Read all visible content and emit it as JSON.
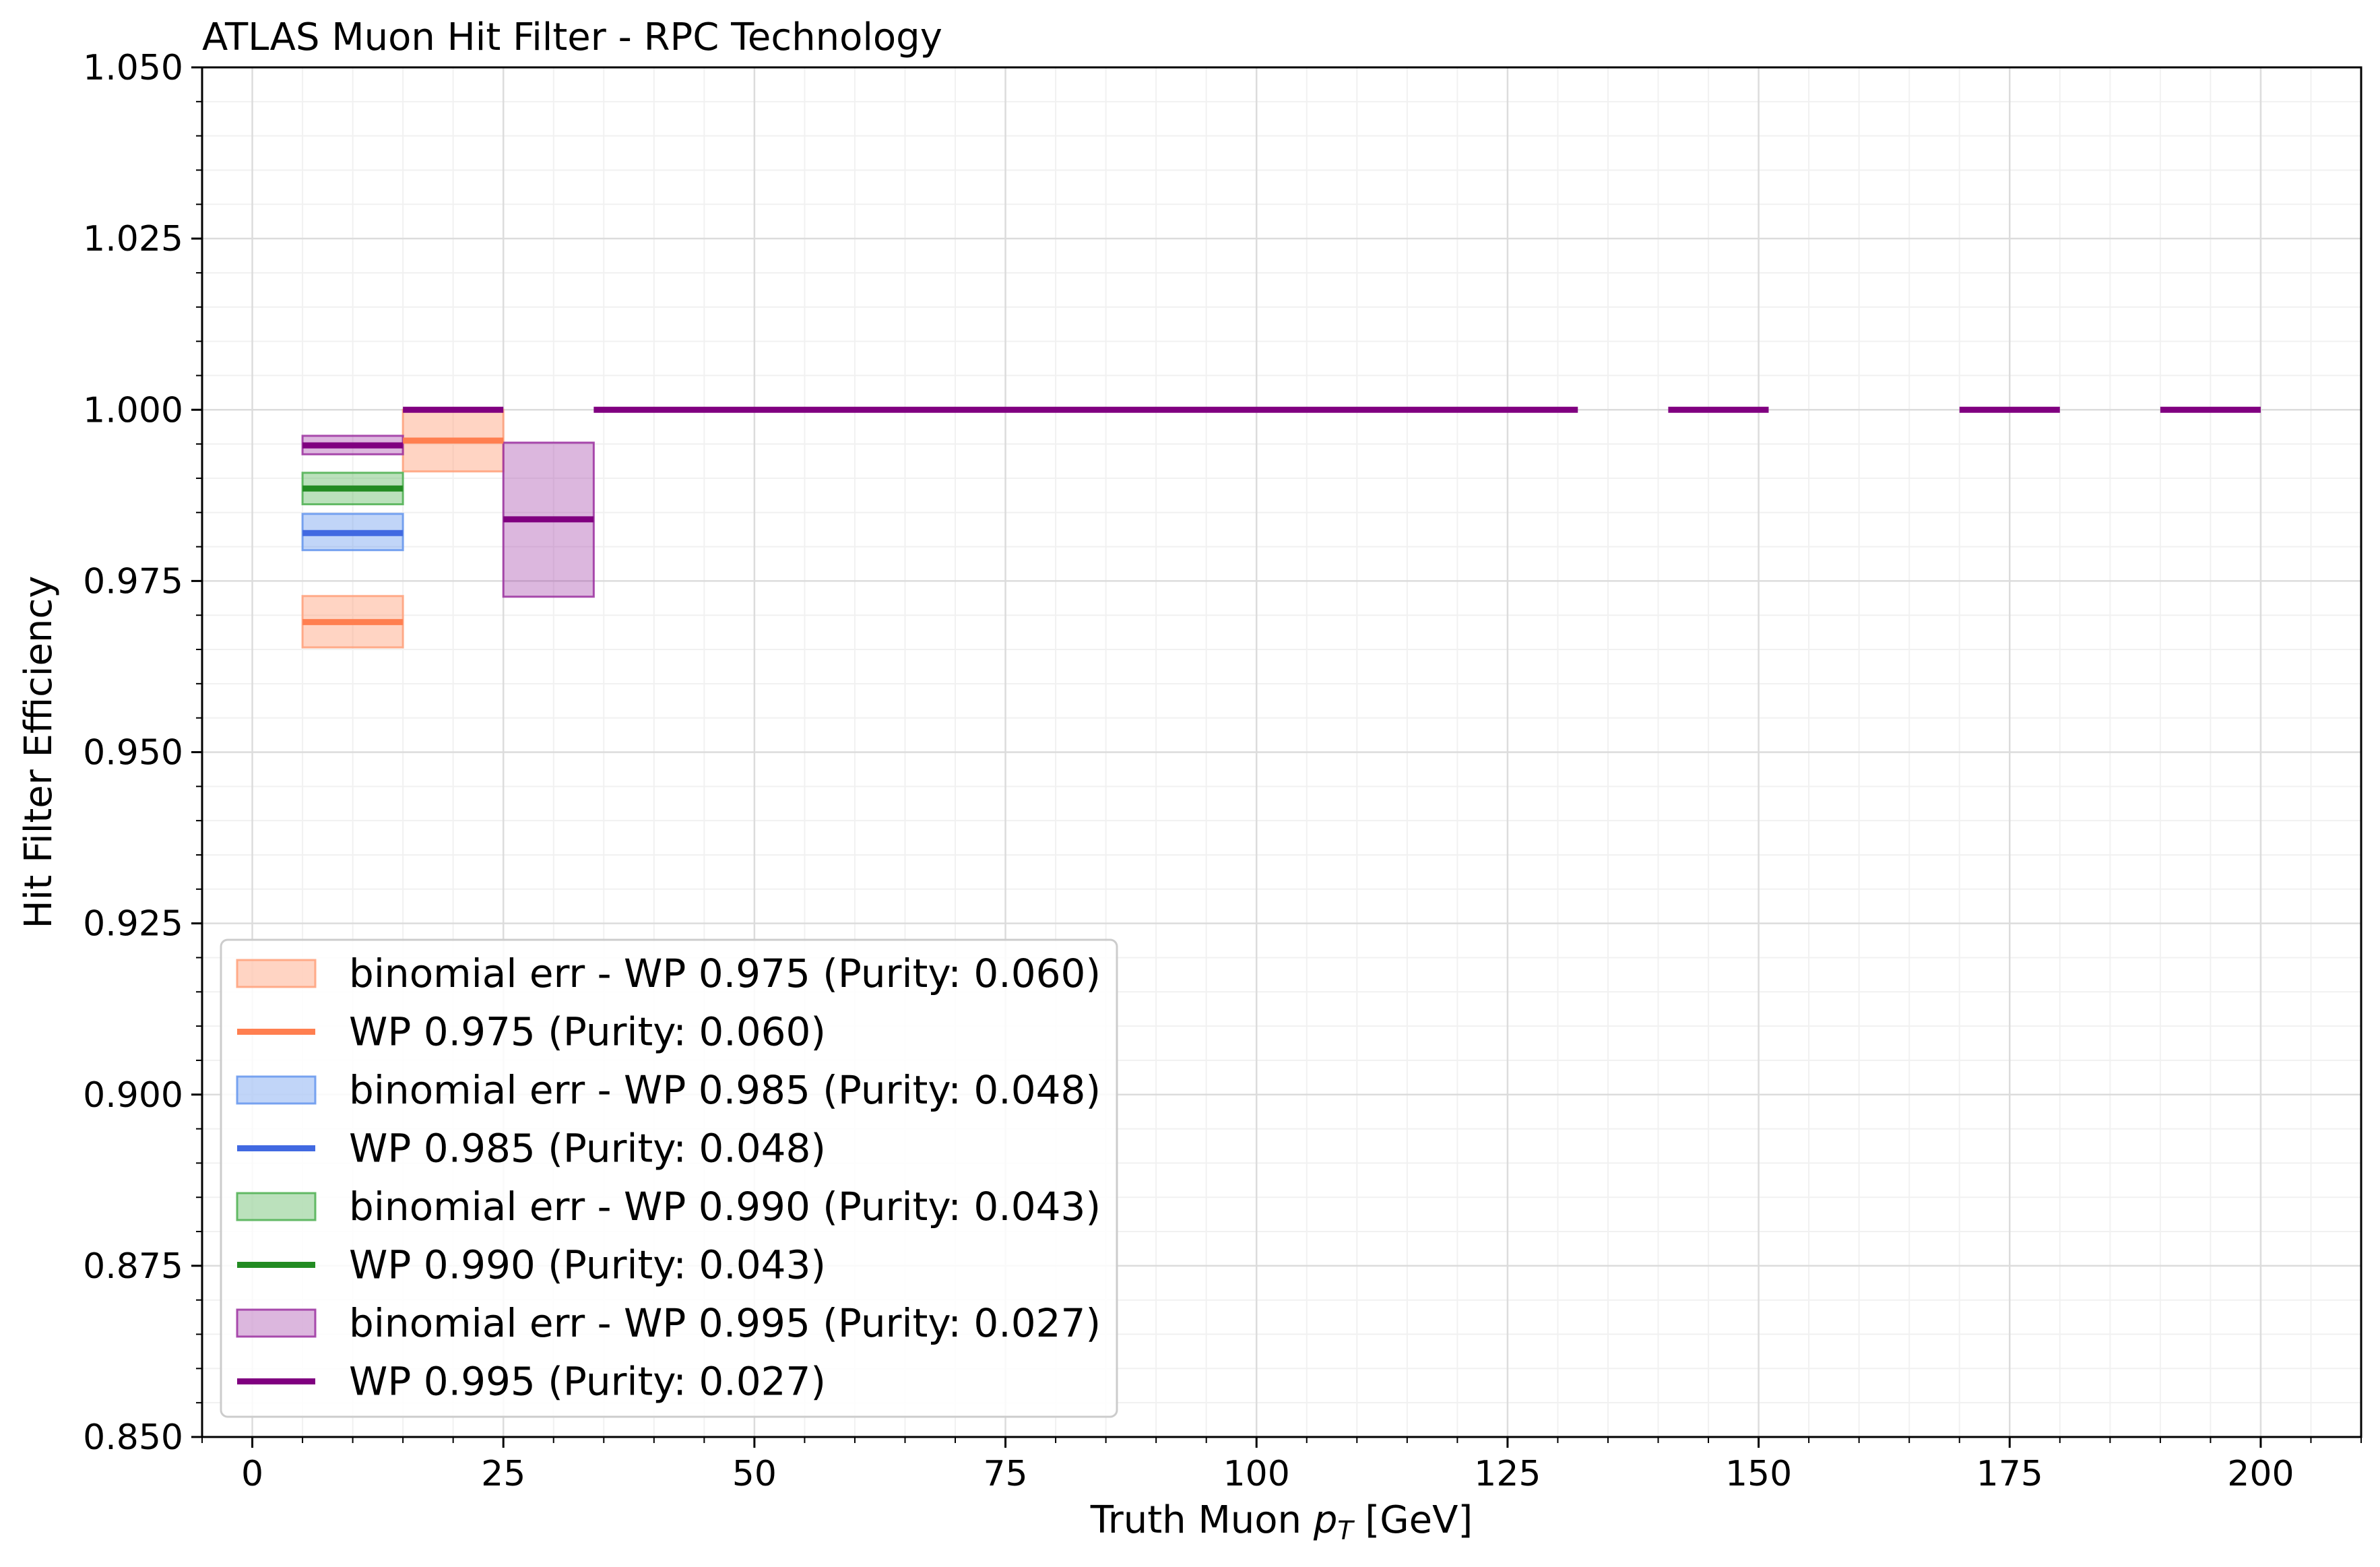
{
  "chart_data": {
    "type": "line",
    "title": "ATLAS Muon Hit Filter - RPC Technology",
    "xlabel_prefix": "Truth Muon ",
    "xlabel_var": "p",
    "xlabel_sub": "T",
    "xlabel_suffix": " [GeV]",
    "ylabel": "Hit Filter Efficiency",
    "xlim": [
      -5,
      210
    ],
    "ylim": [
      0.85,
      1.05
    ],
    "x_ticks": [
      0,
      25,
      50,
      75,
      100,
      125,
      150,
      175,
      200
    ],
    "x_tick_labels": [
      "0",
      "25",
      "50",
      "75",
      "100",
      "125",
      "150",
      "175",
      "200"
    ],
    "y_ticks": [
      0.85,
      0.875,
      0.9,
      0.925,
      0.95,
      0.975,
      1.0,
      1.025,
      1.05
    ],
    "y_tick_labels": [
      "0.850",
      "0.875",
      "0.900",
      "0.925",
      "0.950",
      "0.975",
      "1.000",
      "1.025",
      "1.050"
    ],
    "grid": true,
    "legend_position": "lower-left",
    "series": [
      {
        "name": "WP 0.975 (Purity: 0.060)",
        "band_name": "binomial err - WP 0.975 (Purity: 0.060)",
        "color": "#ff7f50",
        "band_color": "#ffa07a",
        "band_alpha": 0.45,
        "bins": [
          {
            "x0": 5,
            "x1": 15,
            "y": 0.969,
            "lo": 0.9653,
            "hi": 0.9728
          },
          {
            "x0": 15,
            "x1": 25,
            "y": 0.9955,
            "lo": 0.991,
            "hi": 1.0
          }
        ]
      },
      {
        "name": "WP 0.985 (Purity: 0.048)",
        "band_name": "binomial err - WP 0.985 (Purity: 0.048)",
        "color": "#4169e1",
        "band_color": "#6495ed",
        "band_alpha": 0.4,
        "bins": [
          {
            "x0": 5,
            "x1": 15,
            "y": 0.982,
            "lo": 0.9795,
            "hi": 0.9848
          }
        ]
      },
      {
        "name": "WP 0.990 (Purity: 0.043)",
        "band_name": "binomial err - WP 0.990 (Purity: 0.043)",
        "color": "#228b22",
        "band_color": "#4caf50",
        "band_alpha": 0.38,
        "bins": [
          {
            "x0": 5,
            "x1": 15,
            "y": 0.9885,
            "lo": 0.9862,
            "hi": 0.9908
          }
        ]
      },
      {
        "name": "WP 0.995 (Purity: 0.027)",
        "band_name": "binomial err - WP 0.995 (Purity: 0.027)",
        "color": "#800080",
        "band_color": "#9b30a0",
        "band_alpha": 0.35,
        "bins": [
          {
            "x0": 5,
            "x1": 15,
            "y": 0.9948,
            "lo": 0.9935,
            "hi": 0.9962
          },
          {
            "x0": 15,
            "x1": 25,
            "y": 1.0,
            "lo": 1.0,
            "hi": 1.0
          },
          {
            "x0": 25,
            "x1": 34,
            "y": 0.984,
            "lo": 0.9727,
            "hi": 0.9952
          },
          {
            "x0": 34,
            "x1": 132,
            "y": 1.0,
            "lo": 1.0,
            "hi": 1.0
          },
          {
            "x0": 141,
            "x1": 151,
            "y": 1.0,
            "lo": 1.0,
            "hi": 1.0
          },
          {
            "x0": 170,
            "x1": 180,
            "y": 1.0,
            "lo": 1.0,
            "hi": 1.0
          },
          {
            "x0": 190,
            "x1": 200,
            "y": 1.0,
            "lo": 1.0,
            "hi": 1.0
          }
        ]
      }
    ]
  }
}
